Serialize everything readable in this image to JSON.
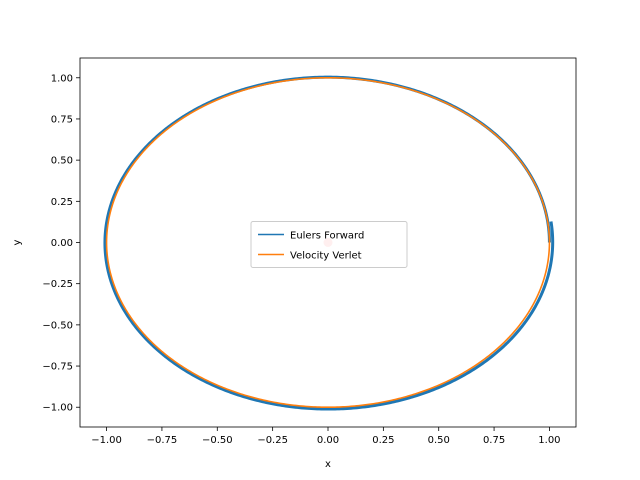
{
  "chart_data": {
    "type": "line",
    "title": "",
    "xlabel": "x",
    "ylabel": "y",
    "xlim": [
      -1.12,
      1.12
    ],
    "ylim": [
      -1.12,
      1.12
    ],
    "xticks": [
      -1.0,
      -0.75,
      -0.5,
      -0.25,
      0.0,
      0.25,
      0.5,
      0.75,
      1.0
    ],
    "yticks": [
      -1.0,
      -0.75,
      -0.5,
      -0.25,
      0.0,
      0.25,
      0.5,
      0.75,
      1.0
    ],
    "xtick_labels": [
      "−1.00",
      "−0.75",
      "−0.50",
      "−0.25",
      "0.00",
      "0.25",
      "0.50",
      "0.75",
      "1.00"
    ],
    "ytick_labels": [
      "−1.00",
      "−0.75",
      "−0.50",
      "−0.25",
      "0.00",
      "0.25",
      "0.50",
      "0.75",
      "1.00"
    ],
    "grid": false,
    "legend_position": "center",
    "series": [
      {
        "name": "Eulers Forward",
        "shape": "circle",
        "center": [
          0,
          0
        ],
        "radius_start": 1.0,
        "radius_end": 1.015,
        "color": "#1f77b4"
      },
      {
        "name": "Velocity Verlet",
        "shape": "circle",
        "center": [
          0,
          0
        ],
        "radius_start": 1.0,
        "radius_end": 1.0,
        "color": "#ff7f0e"
      }
    ],
    "center_point": {
      "x": 0.0,
      "y": 0.0,
      "color": "#ffb0b0"
    }
  }
}
